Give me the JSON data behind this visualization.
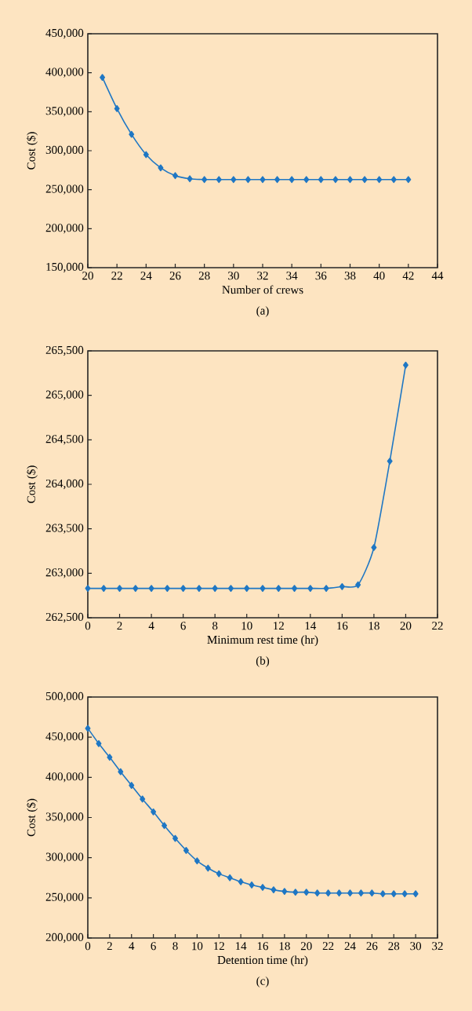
{
  "chart_data": [
    {
      "type": "line",
      "xlabel": "Number of crews",
      "ylabel": "Cost ($)",
      "annotations": [
        "(a)"
      ],
      "x": [
        21,
        22,
        23,
        24,
        25,
        26,
        27,
        28,
        29,
        30,
        31,
        32,
        33,
        34,
        35,
        36,
        37,
        38,
        39,
        40,
        41,
        42
      ],
      "series": [
        {
          "color": "#1f77c4",
          "values": [
            394000,
            354000,
            321000,
            295000,
            278000,
            268000,
            264000,
            263000,
            263000,
            263000,
            263000,
            263000,
            263000,
            263000,
            263000,
            263000,
            263000,
            263000,
            263000,
            263000,
            263000,
            263000
          ]
        }
      ],
      "xlim": [
        20,
        44
      ],
      "xticks": [
        20,
        22,
        24,
        26,
        28,
        30,
        32,
        34,
        36,
        38,
        40,
        42,
        44
      ],
      "ylim": [
        150000,
        450000
      ],
      "yticks": [
        {
          "value": 150000,
          "label": "150,000"
        },
        {
          "value": 200000,
          "label": "200,000"
        },
        {
          "value": 250000,
          "label": "250,000"
        },
        {
          "value": 300000,
          "label": "300,000"
        },
        {
          "value": 350000,
          "label": "350,000"
        },
        {
          "value": 400000,
          "label": "400,000"
        },
        {
          "value": 450000,
          "label": "450,000"
        }
      ],
      "marker": "diamond",
      "line_style": "solid"
    },
    {
      "type": "line",
      "xlabel": "Minimum rest time  (hr)",
      "ylabel": "Cost ($)",
      "annotations": [
        "(b)"
      ],
      "x": [
        0,
        1,
        2,
        3,
        4,
        5,
        6,
        7,
        8,
        9,
        10,
        11,
        12,
        13,
        14,
        15,
        16,
        17,
        18,
        19,
        20
      ],
      "series": [
        {
          "color": "#1f77c4",
          "values": [
            262830,
            262830,
            262830,
            262830,
            262830,
            262830,
            262830,
            262830,
            262830,
            262830,
            262830,
            262830,
            262830,
            262830,
            262830,
            262830,
            262850,
            262870,
            263290,
            264260,
            265340
          ]
        }
      ],
      "xlim": [
        0,
        22
      ],
      "xticks": [
        0,
        2,
        4,
        6,
        8,
        10,
        12,
        14,
        16,
        18,
        20,
        22
      ],
      "ylim": [
        262500,
        265500
      ],
      "yticks": [
        {
          "value": 262500,
          "label": "262,500"
        },
        {
          "value": 263000,
          "label": "263,000"
        },
        {
          "value": 263500,
          "label": "263,500"
        },
        {
          "value": 264000,
          "label": "264,000"
        },
        {
          "value": 264500,
          "label": "264,500"
        },
        {
          "value": 265000,
          "label": "265,000"
        },
        {
          "value": 265500,
          "label": "265,500"
        }
      ],
      "marker": "diamond",
      "line_style": "solid"
    },
    {
      "type": "line",
      "xlabel": "Detention time  (hr)",
      "ylabel": "Cost ($)",
      "annotations": [
        "(c)"
      ],
      "x": [
        0,
        1,
        2,
        3,
        4,
        5,
        6,
        7,
        8,
        9,
        10,
        11,
        12,
        13,
        14,
        15,
        16,
        17,
        18,
        19,
        20,
        21,
        22,
        23,
        24,
        25,
        26,
        27,
        28,
        29,
        30
      ],
      "series": [
        {
          "color": "#1f77c4",
          "values": [
            461000,
            442000,
            425000,
            407000,
            390000,
            373000,
            357000,
            340000,
            324000,
            309000,
            296000,
            287000,
            280000,
            275000,
            270000,
            266000,
            263000,
            260000,
            258000,
            257000,
            257000,
            256000,
            256000,
            256000,
            256000,
            256000,
            256000,
            255000,
            255000,
            255000,
            255000
          ]
        }
      ],
      "xlim": [
        0,
        32
      ],
      "xticks": [
        0,
        2,
        4,
        6,
        8,
        10,
        12,
        14,
        16,
        18,
        20,
        22,
        24,
        26,
        28,
        30,
        32
      ],
      "ylim": [
        200000,
        500000
      ],
      "yticks": [
        {
          "value": 200000,
          "label": "200,000"
        },
        {
          "value": 250000,
          "label": "250,000"
        },
        {
          "value": 300000,
          "label": "300,000"
        },
        {
          "value": 350000,
          "label": "350,000"
        },
        {
          "value": 400000,
          "label": "400,000"
        },
        {
          "value": 450000,
          "label": "450,000"
        },
        {
          "value": 500000,
          "label": "500,000"
        }
      ],
      "marker": "diamond",
      "line_style": "solid"
    }
  ]
}
